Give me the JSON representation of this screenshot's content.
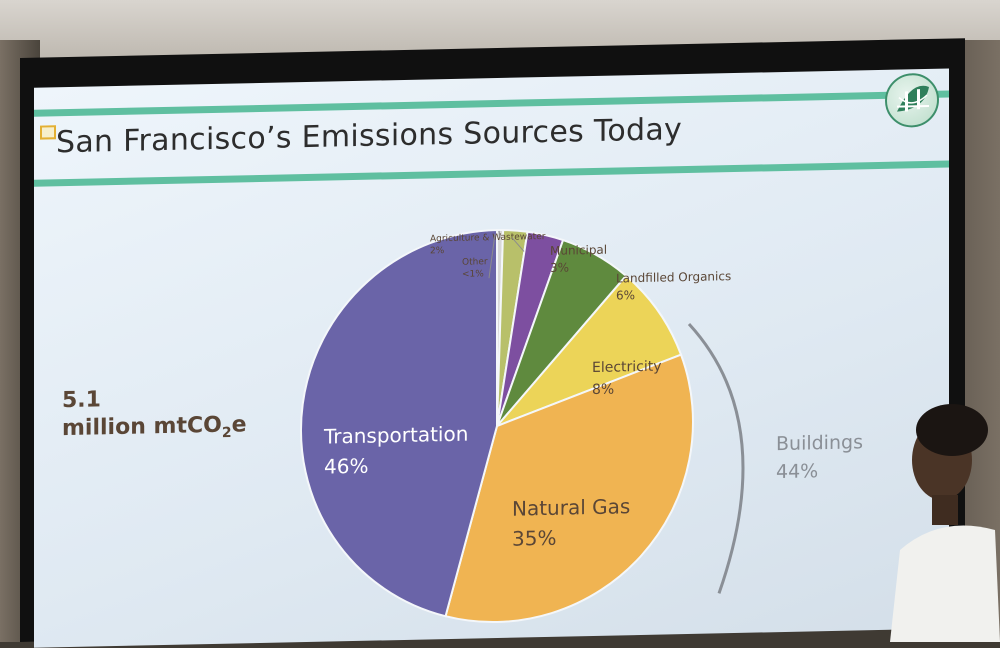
{
  "slide": {
    "title": "San Francisco’s Emissions Sources Today",
    "total_value": "5.1",
    "total_unit_prefix": "million mtCO",
    "total_unit_sub": "2",
    "total_unit_suffix": "e"
  },
  "chart_data": {
    "type": "pie",
    "title": "San Francisco’s Emissions Sources Today",
    "slices": [
      {
        "label": "Transportation",
        "pct_label": "46%",
        "value": 46,
        "color": "#6a64a8"
      },
      {
        "label": "Natural Gas",
        "pct_label": "35%",
        "value": 35,
        "color": "#f0b452"
      },
      {
        "label": "Electricity",
        "pct_label": "8%",
        "value": 8,
        "color": "#ecd458"
      },
      {
        "label": "Landfilled Organics",
        "pct_label": "6%",
        "value": 6,
        "color": "#5f8a3e"
      },
      {
        "label": "Municipal",
        "pct_label": "3%",
        "value": 3,
        "color": "#7d4fa0"
      },
      {
        "label": "Agriculture & Wastewater",
        "pct_label": "2%",
        "value": 2,
        "color": "#b8c06a"
      },
      {
        "label": "Other",
        "pct_label": "<1%",
        "value": 0.5,
        "color": "#d8d8d8"
      }
    ],
    "group_annotation": {
      "label": "Buildings",
      "pct_label": "44%",
      "members": [
        "Natural Gas",
        "Electricity"
      ]
    }
  },
  "colors": {
    "accent_bar": "#5fbfa0",
    "label_dark": "#5a4636",
    "buildings_text": "#8a8f96"
  },
  "icons": {
    "logo": "golden-gate-leaf-logo"
  }
}
